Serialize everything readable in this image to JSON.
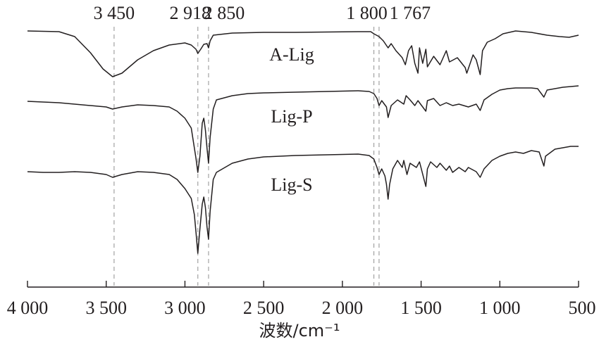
{
  "chart_data": {
    "type": "line",
    "xlabel": "波数/cm⁻¹",
    "ylabel": "",
    "xlim": [
      4000,
      500
    ],
    "x_reversed": true,
    "grid": false,
    "x_ticks": [
      4000,
      3500,
      3000,
      2500,
      2000,
      1500,
      1000,
      500
    ],
    "x_tick_labels": [
      "4 000",
      "3 500",
      "3 000",
      "2 500",
      "2 000",
      "1 500",
      "1 000",
      "500"
    ],
    "reference_lines": [
      {
        "x": 3450,
        "label": "3 450"
      },
      {
        "x": 2918,
        "label": "2 918"
      },
      {
        "x": 2850,
        "label": "2 850"
      },
      {
        "x": 1800,
        "label": "1 800"
      },
      {
        "x": 1767,
        "label": "1 767"
      }
    ],
    "series": [
      {
        "name": "A-Lig",
        "color": "#231f20",
        "points": [
          [
            4000,
            44
          ],
          [
            3900,
            44.5
          ],
          [
            3800,
            45
          ],
          [
            3700,
            52
          ],
          [
            3600,
            75
          ],
          [
            3520,
            98
          ],
          [
            3460,
            109
          ],
          [
            3400,
            104
          ],
          [
            3300,
            85
          ],
          [
            3200,
            72
          ],
          [
            3100,
            64
          ],
          [
            3000,
            61
          ],
          [
            2960,
            64
          ],
          [
            2930,
            70
          ],
          [
            2918,
            76
          ],
          [
            2900,
            70
          ],
          [
            2880,
            63
          ],
          [
            2860,
            62
          ],
          [
            2850,
            68
          ],
          [
            2840,
            58
          ],
          [
            2820,
            50
          ],
          [
            2700,
            47
          ],
          [
            2500,
            46
          ],
          [
            2300,
            46
          ],
          [
            2100,
            45.5
          ],
          [
            1900,
            45
          ],
          [
            1820,
            45
          ],
          [
            1800,
            48
          ],
          [
            1767,
            52
          ],
          [
            1740,
            58
          ],
          [
            1710,
            68
          ],
          [
            1690,
            62
          ],
          [
            1660,
            72
          ],
          [
            1620,
            82
          ],
          [
            1600,
            92
          ],
          [
            1580,
            72
          ],
          [
            1560,
            65
          ],
          [
            1540,
            90
          ],
          [
            1520,
            104
          ],
          [
            1510,
            68
          ],
          [
            1490,
            90
          ],
          [
            1470,
            70
          ],
          [
            1460,
            95
          ],
          [
            1420,
            80
          ],
          [
            1380,
            92
          ],
          [
            1340,
            72
          ],
          [
            1320,
            88
          ],
          [
            1270,
            82
          ],
          [
            1220,
            96
          ],
          [
            1210,
            104
          ],
          [
            1170,
            78
          ],
          [
            1150,
            85
          ],
          [
            1125,
            106
          ],
          [
            1110,
            72
          ],
          [
            1080,
            60
          ],
          [
            1030,
            55
          ],
          [
            980,
            48
          ],
          [
            900,
            44
          ],
          [
            800,
            46
          ],
          [
            700,
            50
          ],
          [
            620,
            52
          ],
          [
            560,
            53
          ],
          [
            500,
            50
          ]
        ]
      },
      {
        "name": "Lig-P",
        "color": "#231f20",
        "points": [
          [
            4000,
            144
          ],
          [
            3900,
            145
          ],
          [
            3800,
            146
          ],
          [
            3600,
            150
          ],
          [
            3500,
            152
          ],
          [
            3460,
            155
          ],
          [
            3400,
            152
          ],
          [
            3300,
            149
          ],
          [
            3200,
            150
          ],
          [
            3100,
            152
          ],
          [
            3050,
            158
          ],
          [
            3000,
            168
          ],
          [
            2960,
            182
          ],
          [
            2930,
            225
          ],
          [
            2918,
            245
          ],
          [
            2905,
            222
          ],
          [
            2890,
            175
          ],
          [
            2880,
            168
          ],
          [
            2870,
            185
          ],
          [
            2860,
            210
          ],
          [
            2850,
            232
          ],
          [
            2840,
            195
          ],
          [
            2820,
            155
          ],
          [
            2800,
            142
          ],
          [
            2700,
            136
          ],
          [
            2600,
            133
          ],
          [
            2500,
            132
          ],
          [
            2300,
            131
          ],
          [
            2100,
            130
          ],
          [
            1900,
            129
          ],
          [
            1830,
            130
          ],
          [
            1800,
            133
          ],
          [
            1780,
            140
          ],
          [
            1767,
            150
          ],
          [
            1750,
            143
          ],
          [
            1720,
            152
          ],
          [
            1710,
            167
          ],
          [
            1690,
            150
          ],
          [
            1650,
            142
          ],
          [
            1610,
            148
          ],
          [
            1595,
            136
          ],
          [
            1570,
            142
          ],
          [
            1540,
            150
          ],
          [
            1520,
            143
          ],
          [
            1510,
            146
          ],
          [
            1470,
            158
          ],
          [
            1460,
            143
          ],
          [
            1420,
            140
          ],
          [
            1380,
            150
          ],
          [
            1340,
            146
          ],
          [
            1300,
            150
          ],
          [
            1260,
            148
          ],
          [
            1200,
            152
          ],
          [
            1150,
            148
          ],
          [
            1125,
            157
          ],
          [
            1100,
            142
          ],
          [
            1050,
            134
          ],
          [
            1000,
            128
          ],
          [
            950,
            126
          ],
          [
            900,
            125
          ],
          [
            800,
            125
          ],
          [
            760,
            126
          ],
          [
            720,
            138
          ],
          [
            700,
            128
          ],
          [
            600,
            124
          ],
          [
            500,
            122
          ]
        ]
      },
      {
        "name": "Lig-S",
        "color": "#231f20",
        "points": [
          [
            4000,
            244
          ],
          [
            3900,
            245
          ],
          [
            3800,
            245
          ],
          [
            3700,
            244
          ],
          [
            3600,
            245
          ],
          [
            3500,
            248
          ],
          [
            3460,
            252
          ],
          [
            3400,
            248
          ],
          [
            3300,
            244
          ],
          [
            3200,
            245
          ],
          [
            3100,
            248
          ],
          [
            3050,
            255
          ],
          [
            3000,
            268
          ],
          [
            2960,
            282
          ],
          [
            2940,
            305
          ],
          [
            2930,
            330
          ],
          [
            2918,
            360
          ],
          [
            2905,
            325
          ],
          [
            2890,
            290
          ],
          [
            2880,
            280
          ],
          [
            2870,
            295
          ],
          [
            2860,
            322
          ],
          [
            2850,
            340
          ],
          [
            2840,
            300
          ],
          [
            2820,
            255
          ],
          [
            2800,
            245
          ],
          [
            2700,
            232
          ],
          [
            2600,
            226
          ],
          [
            2500,
            223
          ],
          [
            2300,
            221
          ],
          [
            2100,
            220
          ],
          [
            1900,
            219
          ],
          [
            1830,
            221
          ],
          [
            1800,
            226
          ],
          [
            1780,
            238
          ],
          [
            1767,
            248
          ],
          [
            1750,
            240
          ],
          [
            1730,
            250
          ],
          [
            1720,
            262
          ],
          [
            1710,
            283
          ],
          [
            1700,
            262
          ],
          [
            1680,
            240
          ],
          [
            1650,
            228
          ],
          [
            1620,
            238
          ],
          [
            1610,
            228
          ],
          [
            1590,
            248
          ],
          [
            1570,
            232
          ],
          [
            1530,
            238
          ],
          [
            1510,
            230
          ],
          [
            1470,
            265
          ],
          [
            1460,
            240
          ],
          [
            1440,
            230
          ],
          [
            1400,
            238
          ],
          [
            1380,
            232
          ],
          [
            1340,
            242
          ],
          [
            1320,
            236
          ],
          [
            1300,
            245
          ],
          [
            1260,
            238
          ],
          [
            1220,
            244
          ],
          [
            1200,
            238
          ],
          [
            1150,
            244
          ],
          [
            1125,
            252
          ],
          [
            1100,
            240
          ],
          [
            1050,
            228
          ],
          [
            1000,
            222
          ],
          [
            950,
            218
          ],
          [
            900,
            216
          ],
          [
            850,
            218
          ],
          [
            800,
            214
          ],
          [
            750,
            216
          ],
          [
            720,
            236
          ],
          [
            710,
            222
          ],
          [
            650,
            212
          ],
          [
            600,
            210
          ],
          [
            550,
            208
          ],
          [
            500,
            208
          ]
        ]
      }
    ]
  }
}
